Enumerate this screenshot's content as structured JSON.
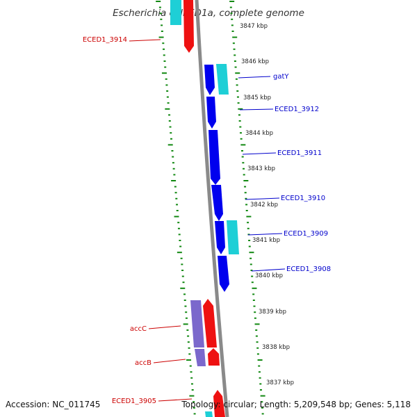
{
  "title": "Escherichia coli ED1a, complete genome",
  "footer": {
    "accession": "Accession: NC_011745",
    "summary": "Topology: circular; Length: 5,209,548 bp; Genes: 5,118"
  },
  "colors": {
    "forward_cds": "#0000ee",
    "forward_other": "#1ecfd6",
    "reverse_cds": "#ee1111",
    "reverse_other": "#7b68cc",
    "backbone": "#8a8a8a",
    "tick": "#118811",
    "label_forward": "#0000cc",
    "label_reverse": "#cc0000"
  },
  "kbp_markers": [
    "3847 kbp",
    "3846 kbp",
    "3845 kbp",
    "3844 kbp",
    "3843 kbp",
    "3842 kbp",
    "3841 kbp",
    "3840 kbp",
    "3839 kbp",
    "3838 kbp",
    "3837 kbp"
  ],
  "forward_labels": [
    "gatY",
    "ECED1_3912",
    "ECED1_3911",
    "ECED1_3910",
    "ECED1_3909",
    "ECED1_3908"
  ],
  "reverse_labels": [
    "ECED1_3914",
    "accC",
    "accB",
    "ECED1_3905"
  ]
}
